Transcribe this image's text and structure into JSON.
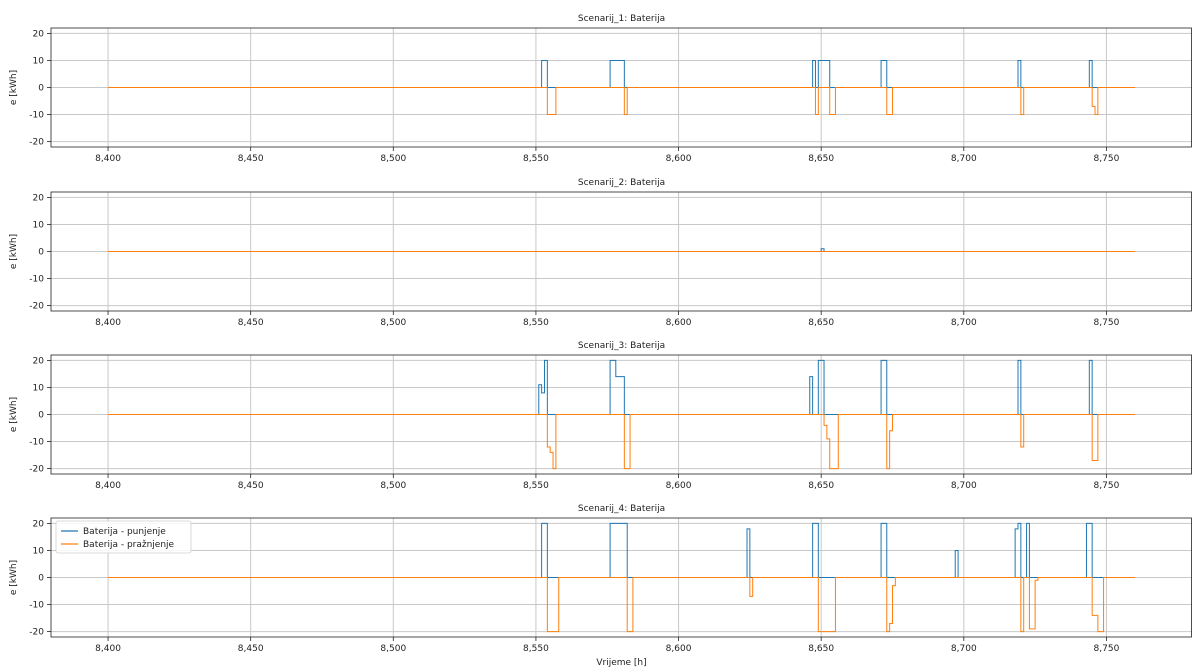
{
  "colors": {
    "charge": "#1f77b4",
    "discharge": "#ff7f0e",
    "grid": "#c8c8c8",
    "axis": "#222222"
  },
  "chart_data": [
    {
      "type": "line",
      "title": "Scenarij_1: Baterija",
      "ylabel": "e [kWh]",
      "xlabel": "",
      "xlim": [
        8380,
        8780
      ],
      "ylim": [
        -22,
        22
      ],
      "xticks": [
        8400,
        8450,
        8500,
        8550,
        8600,
        8650,
        8700,
        8750
      ],
      "xtick_labels": [
        "8,400",
        "8,450",
        "8,500",
        "8,550",
        "8,600",
        "8,650",
        "8,700",
        "8,750"
      ],
      "yticks": [
        -20,
        -10,
        0,
        10,
        20
      ],
      "grid": true,
      "series": [
        {
          "name": "Baterija - punjenje",
          "color": "#1f77b4",
          "points": [
            [
              8400,
              0
            ],
            [
              8552,
              0
            ],
            [
              8552,
              10
            ],
            [
              8554,
              10
            ],
            [
              8554,
              0
            ],
            [
              8576,
              0
            ],
            [
              8576,
              10
            ],
            [
              8581,
              10
            ],
            [
              8581,
              0
            ],
            [
              8647,
              0
            ],
            [
              8647,
              10
            ],
            [
              8648,
              10
            ],
            [
              8648,
              0
            ],
            [
              8649,
              0
            ],
            [
              8649,
              10
            ],
            [
              8653,
              10
            ],
            [
              8653,
              0
            ],
            [
              8671,
              0
            ],
            [
              8671,
              10
            ],
            [
              8673,
              10
            ],
            [
              8673,
              0
            ],
            [
              8719,
              0
            ],
            [
              8719,
              10
            ],
            [
              8720,
              10
            ],
            [
              8720,
              0
            ],
            [
              8744,
              0
            ],
            [
              8744,
              10
            ],
            [
              8745,
              10
            ],
            [
              8745,
              0
            ],
            [
              8760,
              0
            ]
          ]
        },
        {
          "name": "Baterija - pražnjenje",
          "color": "#ff7f0e",
          "points": [
            [
              8400,
              0
            ],
            [
              8554,
              0
            ],
            [
              8554,
              -10
            ],
            [
              8557,
              -10
            ],
            [
              8557,
              0
            ],
            [
              8581,
              0
            ],
            [
              8581,
              -10
            ],
            [
              8582,
              -10
            ],
            [
              8582,
              0
            ],
            [
              8648,
              0
            ],
            [
              8648,
              -10
            ],
            [
              8649,
              -10
            ],
            [
              8649,
              0
            ],
            [
              8653,
              0
            ],
            [
              8653,
              -10
            ],
            [
              8655,
              -10
            ],
            [
              8655,
              0
            ],
            [
              8673,
              0
            ],
            [
              8673,
              -10
            ],
            [
              8675,
              -10
            ],
            [
              8675,
              0
            ],
            [
              8720,
              0
            ],
            [
              8720,
              -10
            ],
            [
              8721,
              -10
            ],
            [
              8721,
              0
            ],
            [
              8745,
              0
            ],
            [
              8745,
              -7
            ],
            [
              8746,
              -7
            ],
            [
              8746,
              -10
            ],
            [
              8747,
              -10
            ],
            [
              8747,
              0
            ],
            [
              8760,
              0
            ]
          ]
        }
      ]
    },
    {
      "type": "line",
      "title": "Scenarij_2: Baterija",
      "ylabel": "e [kWh]",
      "xlabel": "",
      "xlim": [
        8380,
        8780
      ],
      "ylim": [
        -22,
        22
      ],
      "xticks": [
        8400,
        8450,
        8500,
        8550,
        8600,
        8650,
        8700,
        8750
      ],
      "xtick_labels": [
        "8,400",
        "8,450",
        "8,500",
        "8,550",
        "8,600",
        "8,650",
        "8,700",
        "8,750"
      ],
      "yticks": [
        -20,
        -10,
        0,
        10,
        20
      ],
      "grid": true,
      "series": [
        {
          "name": "Baterija - punjenje",
          "color": "#1f77b4",
          "points": [
            [
              8400,
              0
            ],
            [
              8650,
              0
            ],
            [
              8650,
              1
            ],
            [
              8651,
              1
            ],
            [
              8651,
              0
            ],
            [
              8760,
              0
            ]
          ]
        },
        {
          "name": "Baterija - pražnjenje",
          "color": "#ff7f0e",
          "points": [
            [
              8400,
              0
            ],
            [
              8760,
              0
            ]
          ]
        }
      ]
    },
    {
      "type": "line",
      "title": "Scenarij_3: Baterija",
      "ylabel": "e [kWh]",
      "xlabel": "",
      "xlim": [
        8380,
        8780
      ],
      "ylim": [
        -22,
        22
      ],
      "xticks": [
        8400,
        8450,
        8500,
        8550,
        8600,
        8650,
        8700,
        8750
      ],
      "xtick_labels": [
        "8,400",
        "8,450",
        "8,500",
        "8,550",
        "8,600",
        "8,650",
        "8,700",
        "8,750"
      ],
      "yticks": [
        -20,
        -10,
        0,
        10,
        20
      ],
      "grid": true,
      "series": [
        {
          "name": "Baterija - punjenje",
          "color": "#1f77b4",
          "points": [
            [
              8400,
              0
            ],
            [
              8551,
              0
            ],
            [
              8551,
              11
            ],
            [
              8552,
              11
            ],
            [
              8552,
              8
            ],
            [
              8553,
              8
            ],
            [
              8553,
              20
            ],
            [
              8554,
              20
            ],
            [
              8554,
              0
            ],
            [
              8576,
              0
            ],
            [
              8576,
              20
            ],
            [
              8578,
              20
            ],
            [
              8578,
              14
            ],
            [
              8581,
              14
            ],
            [
              8581,
              0
            ],
            [
              8646,
              0
            ],
            [
              8646,
              14
            ],
            [
              8647,
              14
            ],
            [
              8647,
              0
            ],
            [
              8649,
              0
            ],
            [
              8649,
              20
            ],
            [
              8651,
              20
            ],
            [
              8651,
              0
            ],
            [
              8671,
              0
            ],
            [
              8671,
              20
            ],
            [
              8673,
              20
            ],
            [
              8673,
              0
            ],
            [
              8719,
              0
            ],
            [
              8719,
              20
            ],
            [
              8720,
              20
            ],
            [
              8720,
              0
            ],
            [
              8744,
              0
            ],
            [
              8744,
              20
            ],
            [
              8745,
              20
            ],
            [
              8745,
              0
            ],
            [
              8760,
              0
            ]
          ]
        },
        {
          "name": "Baterija - pražnjenje",
          "color": "#ff7f0e",
          "points": [
            [
              8400,
              0
            ],
            [
              8554,
              0
            ],
            [
              8554,
              -12
            ],
            [
              8555,
              -12
            ],
            [
              8555,
              -14
            ],
            [
              8556,
              -14
            ],
            [
              8556,
              -20
            ],
            [
              8557,
              -20
            ],
            [
              8557,
              0
            ],
            [
              8581,
              0
            ],
            [
              8581,
              -20
            ],
            [
              8583,
              -20
            ],
            [
              8583,
              0
            ],
            [
              8651,
              0
            ],
            [
              8651,
              -4
            ],
            [
              8652,
              -4
            ],
            [
              8652,
              -9
            ],
            [
              8653,
              -9
            ],
            [
              8653,
              -20
            ],
            [
              8656,
              -20
            ],
            [
              8656,
              0
            ],
            [
              8673,
              0
            ],
            [
              8673,
              -20
            ],
            [
              8674,
              -20
            ],
            [
              8674,
              -6
            ],
            [
              8675,
              -6
            ],
            [
              8675,
              0
            ],
            [
              8720,
              0
            ],
            [
              8720,
              -12
            ],
            [
              8721,
              -12
            ],
            [
              8721,
              0
            ],
            [
              8745,
              0
            ],
            [
              8745,
              -17
            ],
            [
              8747,
              -17
            ],
            [
              8747,
              0
            ],
            [
              8760,
              0
            ]
          ]
        }
      ]
    },
    {
      "type": "line",
      "title": "Scenarij_4: Baterija",
      "ylabel": "e [kWh]",
      "xlabel": "Vrijeme [h]",
      "xlim": [
        8380,
        8780
      ],
      "ylim": [
        -22,
        22
      ],
      "xticks": [
        8400,
        8450,
        8500,
        8550,
        8600,
        8650,
        8700,
        8750
      ],
      "xtick_labels": [
        "8,400",
        "8,450",
        "8,500",
        "8,550",
        "8,600",
        "8,650",
        "8,700",
        "8,750"
      ],
      "yticks": [
        -20,
        -10,
        0,
        10,
        20
      ],
      "grid": true,
      "legend": {
        "position": "top-left",
        "entries": [
          "Baterija - punjenje",
          "Baterija - pražnjenje"
        ]
      },
      "series": [
        {
          "name": "Baterija - punjenje",
          "color": "#1f77b4",
          "points": [
            [
              8400,
              0
            ],
            [
              8552,
              0
            ],
            [
              8552,
              20
            ],
            [
              8554,
              20
            ],
            [
              8554,
              0
            ],
            [
              8576,
              0
            ],
            [
              8576,
              20
            ],
            [
              8582,
              20
            ],
            [
              8582,
              0
            ],
            [
              8624,
              0
            ],
            [
              8624,
              18
            ],
            [
              8625,
              18
            ],
            [
              8625,
              0
            ],
            [
              8647,
              0
            ],
            [
              8647,
              20
            ],
            [
              8649,
              20
            ],
            [
              8649,
              0
            ],
            [
              8671,
              0
            ],
            [
              8671,
              20
            ],
            [
              8673,
              20
            ],
            [
              8673,
              0
            ],
            [
              8697,
              0
            ],
            [
              8697,
              10
            ],
            [
              8698,
              10
            ],
            [
              8698,
              0
            ],
            [
              8718,
              0
            ],
            [
              8718,
              18
            ],
            [
              8719,
              18
            ],
            [
              8719,
              20
            ],
            [
              8720,
              20
            ],
            [
              8720,
              0
            ],
            [
              8722,
              0
            ],
            [
              8722,
              20
            ],
            [
              8723,
              20
            ],
            [
              8723,
              0
            ],
            [
              8743,
              0
            ],
            [
              8743,
              20
            ],
            [
              8745,
              20
            ],
            [
              8745,
              0
            ],
            [
              8760,
              0
            ]
          ]
        },
        {
          "name": "Baterija - pražnjenje",
          "color": "#ff7f0e",
          "points": [
            [
              8400,
              0
            ],
            [
              8554,
              0
            ],
            [
              8554,
              -20
            ],
            [
              8558,
              -20
            ],
            [
              8558,
              0
            ],
            [
              8582,
              0
            ],
            [
              8582,
              -20
            ],
            [
              8584,
              -20
            ],
            [
              8584,
              0
            ],
            [
              8625,
              0
            ],
            [
              8625,
              -7
            ],
            [
              8626,
              -7
            ],
            [
              8626,
              0
            ],
            [
              8649,
              0
            ],
            [
              8649,
              -20
            ],
            [
              8655,
              -20
            ],
            [
              8655,
              0
            ],
            [
              8673,
              0
            ],
            [
              8673,
              -20
            ],
            [
              8674,
              -20
            ],
            [
              8674,
              -17
            ],
            [
              8675,
              -17
            ],
            [
              8675,
              -3
            ],
            [
              8676,
              -3
            ],
            [
              8676,
              0
            ],
            [
              8720,
              0
            ],
            [
              8720,
              -20
            ],
            [
              8721,
              -20
            ],
            [
              8721,
              0
            ],
            [
              8723,
              0
            ],
            [
              8723,
              -19
            ],
            [
              8725,
              -19
            ],
            [
              8725,
              -1
            ],
            [
              8726,
              -1
            ],
            [
              8726,
              0
            ],
            [
              8745,
              0
            ],
            [
              8745,
              -14
            ],
            [
              8747,
              -14
            ],
            [
              8747,
              -20
            ],
            [
              8749,
              -20
            ],
            [
              8749,
              0
            ],
            [
              8760,
              0
            ]
          ]
        }
      ]
    }
  ]
}
